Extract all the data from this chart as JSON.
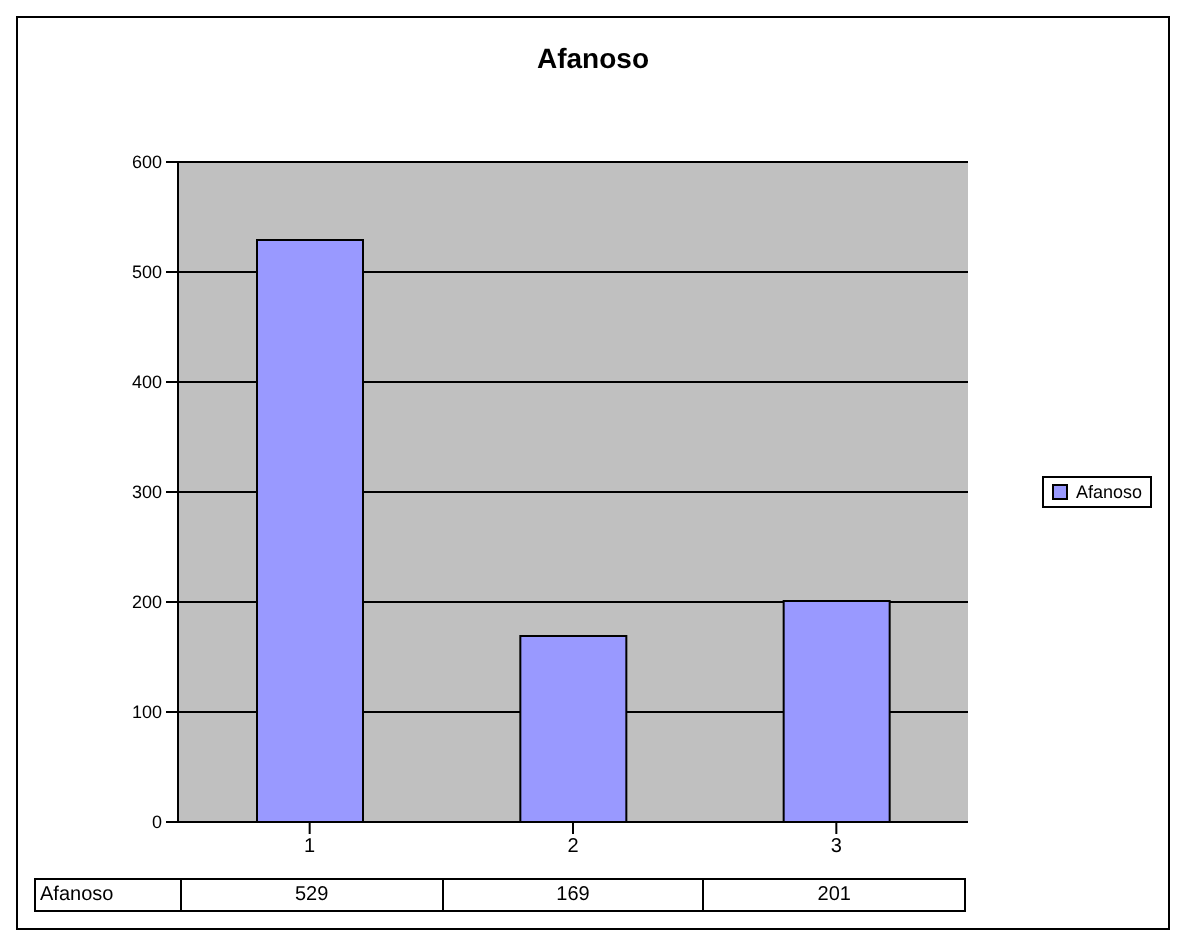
{
  "chart_data": {
    "type": "bar",
    "title": "Afanoso",
    "categories": [
      "1",
      "2",
      "3"
    ],
    "series": [
      {
        "name": "Afanoso",
        "color": "#9999ff",
        "values": [
          529,
          169,
          201
        ]
      }
    ],
    "ylim": [
      0,
      600
    ],
    "yticks": [
      0,
      100,
      200,
      300,
      400,
      500,
      600
    ],
    "grid": "y",
    "legend": "right",
    "data_labels": true
  }
}
